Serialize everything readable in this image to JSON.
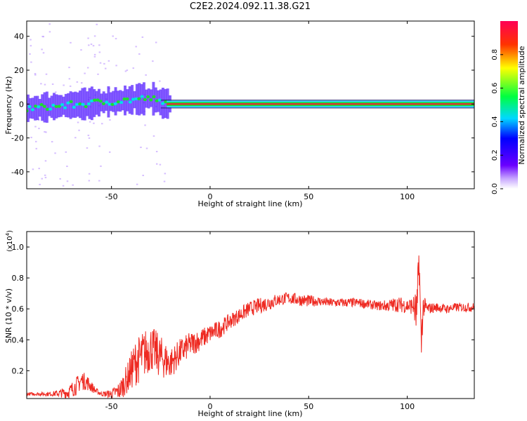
{
  "page": {
    "title": "C2E2.2024.092.11.38.G21"
  },
  "colors": {
    "signal_line": "#ee2a22",
    "mid_band": "#1edc30",
    "noise_band": "#5a24ff",
    "outlier": "#b58aff",
    "axis": "#000000"
  },
  "chart_data": [
    {
      "type": "heatmap",
      "xlabel": "Height of straight line (km)",
      "ylabel": "Frequency (Hz)",
      "xlim": [
        -93,
        134
      ],
      "ylim": [
        -50,
        49
      ],
      "xticks": [
        -50,
        0,
        50,
        100
      ],
      "yticks": [
        -40,
        -20,
        0,
        20,
        40
      ],
      "grid": false,
      "colorbar": {
        "label": "Normalized spectral amplitude",
        "range": [
          0,
          1
        ],
        "ticks": [
          0.0,
          0.2,
          0.4,
          0.6,
          0.8
        ],
        "colormap": "rainbow (purple→blue→cyan→green→yellow→red)"
      },
      "ridge": [
        {
          "x": -90,
          "freq": -2.5,
          "amplitude": 0.45
        },
        {
          "x": -80,
          "freq": -1.5,
          "amplitude": 0.45
        },
        {
          "x": -70,
          "freq": -0.5,
          "amplitude": 0.45
        },
        {
          "x": -60,
          "freq": 0.5,
          "amplitude": 0.45
        },
        {
          "x": -50,
          "freq": 1.5,
          "amplitude": 0.45
        },
        {
          "x": -40,
          "freq": 2.5,
          "amplitude": 0.45
        },
        {
          "x": -30,
          "freq": 3.5,
          "amplitude": 0.5
        },
        {
          "x": -25,
          "freq": 0.5,
          "amplitude": 0.55
        },
        {
          "x": -20,
          "freq": 0.0,
          "amplitude": 0.95
        },
        {
          "x": 0,
          "freq": 0.0,
          "amplitude": 1.0
        },
        {
          "x": 50,
          "freq": 0.0,
          "amplitude": 1.0
        },
        {
          "x": 100,
          "freq": 0.0,
          "amplitude": 1.0
        },
        {
          "x": 134,
          "freq": 0.0,
          "amplitude": 1.0
        }
      ]
    },
    {
      "type": "line",
      "xlabel": "Height of straight line (km)",
      "ylabel": "SNR (10 * v/v)",
      "y_multiplier_label": "(x10",
      "y_multiplier_exp": "4",
      "y_multiplier_close": ")",
      "xlim": [
        -93,
        134
      ],
      "ylim": [
        0.02,
        1.1
      ],
      "xticks": [
        -50,
        0,
        50,
        100
      ],
      "yticks": [
        0.2,
        0.4,
        0.6,
        0.8,
        1.0
      ],
      "grid": false,
      "series": [
        {
          "x": [
            -93,
            -80,
            -72,
            -68,
            -65,
            -62,
            -58,
            -55,
            -50,
            -46,
            -42,
            -38,
            -34,
            -30,
            -26,
            -22,
            -20,
            -15,
            -10,
            -5,
            0,
            5,
            10,
            15,
            20,
            25,
            30,
            35,
            40,
            45,
            50,
            55,
            60,
            65,
            70,
            75,
            80,
            85,
            90,
            95,
            100,
            103,
            105,
            106,
            107,
            108,
            110,
            115,
            120,
            125,
            130,
            134
          ],
          "values": [
            0.05,
            0.05,
            0.06,
            0.1,
            0.14,
            0.12,
            0.07,
            0.05,
            0.05,
            0.07,
            0.15,
            0.25,
            0.3,
            0.35,
            0.3,
            0.26,
            0.25,
            0.32,
            0.37,
            0.4,
            0.44,
            0.47,
            0.52,
            0.56,
            0.6,
            0.62,
            0.64,
            0.66,
            0.67,
            0.66,
            0.65,
            0.65,
            0.64,
            0.64,
            0.64,
            0.64,
            0.63,
            0.62,
            0.62,
            0.63,
            0.62,
            0.62,
            0.55,
            0.95,
            0.35,
            0.62,
            0.6,
            0.61,
            0.6,
            0.61,
            0.61,
            0.61
          ],
          "jitter": [
            0.01,
            0.015,
            0.04,
            0.06,
            0.06,
            0.05,
            0.02,
            0.015,
            0.03,
            0.06,
            0.1,
            0.15,
            0.16,
            0.15,
            0.14,
            0.12,
            0.1,
            0.09,
            0.08,
            0.07,
            0.06,
            0.06,
            0.05,
            0.05,
            0.05,
            0.05,
            0.05,
            0.04,
            0.04,
            0.04,
            0.04,
            0.03,
            0.03,
            0.03,
            0.03,
            0.03,
            0.03,
            0.03,
            0.04,
            0.05,
            0.05,
            0.06,
            0.2,
            0.15,
            0.2,
            0.08,
            0.04,
            0.03,
            0.03,
            0.03,
            0.03,
            0.03
          ]
        }
      ]
    }
  ]
}
